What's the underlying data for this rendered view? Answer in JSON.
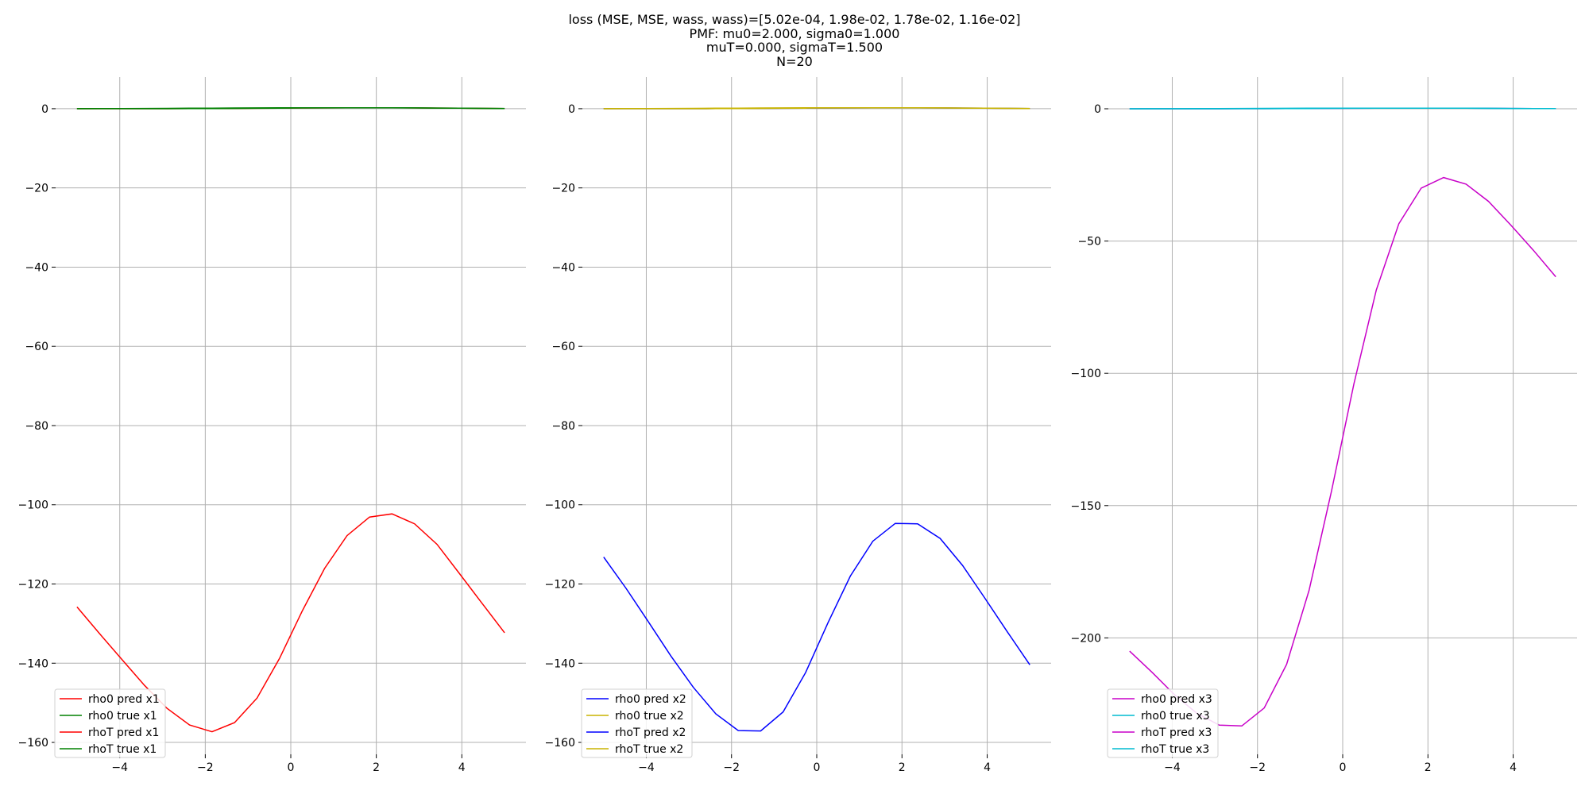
{
  "title_lines": [
    "loss (MSE, MSE, wass, wass)=[5.02e-04, 1.98e-02, 1.78e-02, 1.16e-02]",
    "PMF: mu0=2.000, sigma0=1.000",
    "muT=0.000, sigmaT=1.500",
    "N=20"
  ],
  "chart_data": [
    {
      "type": "line",
      "xlabel": "",
      "ylabel": "",
      "xlim": [
        -5.5,
        5.5
      ],
      "ylim": [
        -163,
        8
      ],
      "x_ticks": [
        -4,
        -2,
        0,
        2,
        4
      ],
      "y_ticks": [
        0,
        -20,
        -40,
        -60,
        -80,
        -100,
        -120,
        -140,
        -160
      ],
      "grid": true,
      "legend_position": "lower-left",
      "x": [
        -5.0,
        -4.474,
        -3.947,
        -3.421,
        -2.895,
        -2.368,
        -1.842,
        -1.316,
        -0.789,
        -0.263,
        0.263,
        0.789,
        1.316,
        1.842,
        2.368,
        2.895,
        3.421,
        3.947,
        4.474,
        5.0
      ],
      "series": [
        {
          "name": "rho0 pred x1",
          "color": "#ff0000",
          "values": [
            0.0,
            0.0,
            0.0,
            0.0,
            0.01,
            0.02,
            0.04,
            0.06,
            0.1,
            0.14,
            0.18,
            0.21,
            0.24,
            0.25,
            0.24,
            0.21,
            0.17,
            0.12,
            0.08,
            0.05
          ]
        },
        {
          "name": "rho0 true x1",
          "color": "#008000",
          "values": [
            0.0,
            0.0,
            0.0,
            0.0,
            0.01,
            0.02,
            0.04,
            0.06,
            0.1,
            0.14,
            0.18,
            0.21,
            0.24,
            0.25,
            0.24,
            0.21,
            0.17,
            0.12,
            0.08,
            0.05
          ]
        },
        {
          "name": "rhoT pred x1",
          "color": "#ff0000",
          "values": [
            -125.8,
            -132.5,
            -139.1,
            -145.6,
            -151.4,
            -155.6,
            -157.3,
            -155.0,
            -148.8,
            -138.8,
            -126.9,
            -116.1,
            -107.8,
            -103.1,
            -102.3,
            -104.8,
            -110.0,
            -117.4,
            -124.9,
            -132.3
          ]
        },
        {
          "name": "rhoT true x1",
          "color": "#008000",
          "values": [
            0.01,
            0.02,
            0.04,
            0.06,
            0.09,
            0.12,
            0.15,
            0.18,
            0.21,
            0.23,
            0.24,
            0.25,
            0.25,
            0.24,
            0.22,
            0.2,
            0.16,
            0.12,
            0.09,
            0.06
          ]
        }
      ]
    },
    {
      "type": "line",
      "xlabel": "",
      "ylabel": "",
      "xlim": [
        -5.5,
        5.5
      ],
      "ylim": [
        -163,
        8
      ],
      "x_ticks": [
        -4,
        -2,
        0,
        2,
        4
      ],
      "y_ticks": [
        0,
        -20,
        -40,
        -60,
        -80,
        -100,
        -120,
        -140,
        -160
      ],
      "grid": true,
      "legend_position": "lower-left",
      "x": [
        -5.0,
        -4.474,
        -3.947,
        -3.421,
        -2.895,
        -2.368,
        -1.842,
        -1.316,
        -0.789,
        -0.263,
        0.263,
        0.789,
        1.316,
        1.842,
        2.368,
        2.895,
        3.421,
        3.947,
        4.474,
        5.0
      ],
      "series": [
        {
          "name": "rho0 pred x2",
          "color": "#0000ff",
          "values": [
            0.0,
            0.0,
            0.0,
            0.0,
            0.01,
            0.02,
            0.04,
            0.06,
            0.1,
            0.14,
            0.18,
            0.21,
            0.24,
            0.25,
            0.24,
            0.21,
            0.17,
            0.12,
            0.08,
            0.05
          ]
        },
        {
          "name": "rho0 true x2",
          "color": "#c8b400",
          "values": [
            0.0,
            0.0,
            0.0,
            0.0,
            0.01,
            0.02,
            0.04,
            0.06,
            0.1,
            0.14,
            0.18,
            0.21,
            0.24,
            0.25,
            0.24,
            0.21,
            0.17,
            0.12,
            0.08,
            0.05
          ]
        },
        {
          "name": "rhoT pred x2",
          "color": "#0000ff",
          "values": [
            -113.2,
            -121.1,
            -129.6,
            -138.2,
            -146.1,
            -152.8,
            -157.0,
            -157.1,
            -152.3,
            -142.4,
            -129.8,
            -118.0,
            -109.2,
            -104.7,
            -104.8,
            -108.5,
            -115.3,
            -123.6,
            -132.1,
            -140.4
          ]
        },
        {
          "name": "rhoT true x2",
          "color": "#c8b400",
          "values": [
            0.01,
            0.02,
            0.04,
            0.06,
            0.09,
            0.12,
            0.15,
            0.18,
            0.21,
            0.23,
            0.24,
            0.25,
            0.25,
            0.24,
            0.22,
            0.2,
            0.16,
            0.12,
            0.09,
            0.06
          ]
        }
      ]
    },
    {
      "type": "line",
      "xlabel": "",
      "ylabel": "",
      "xlim": [
        -5.5,
        5.5
      ],
      "ylim": [
        -244,
        12
      ],
      "x_ticks": [
        -4,
        -2,
        0,
        2,
        4
      ],
      "y_ticks": [
        0,
        -50,
        -100,
        -150,
        -200
      ],
      "grid": true,
      "legend_position": "lower-left",
      "x": [
        -5.0,
        -4.474,
        -3.947,
        -3.421,
        -2.895,
        -2.368,
        -1.842,
        -1.316,
        -0.789,
        -0.263,
        0.263,
        0.789,
        1.316,
        1.842,
        2.368,
        2.895,
        3.421,
        3.947,
        4.474,
        5.0
      ],
      "series": [
        {
          "name": "rho0 pred x3",
          "color": "#c800c8",
          "values": [
            0.0,
            0.0,
            0.0,
            0.0,
            0.01,
            0.02,
            0.04,
            0.06,
            0.1,
            0.14,
            0.18,
            0.21,
            0.24,
            0.25,
            0.24,
            0.21,
            0.17,
            0.12,
            0.08,
            0.05
          ]
        },
        {
          "name": "rho0 true x3",
          "color": "#00bcd0",
          "values": [
            0.0,
            0.0,
            0.0,
            0.0,
            0.01,
            0.02,
            0.04,
            0.06,
            0.1,
            0.14,
            0.18,
            0.21,
            0.24,
            0.25,
            0.24,
            0.21,
            0.17,
            0.12,
            0.08,
            0.05
          ]
        },
        {
          "name": "rhoT pred x3",
          "color": "#c800c8",
          "values": [
            -205.0,
            -213.0,
            -221.5,
            -228.5,
            -233.0,
            -233.3,
            -226.5,
            -210.0,
            -182.0,
            -144.5,
            -104.0,
            -68.5,
            -43.5,
            -30.0,
            -26.0,
            -28.5,
            -35.0,
            -44.0,
            -53.5,
            -63.5
          ]
        },
        {
          "name": "rhoT true x3",
          "color": "#00bcd0",
          "values": [
            0.01,
            0.02,
            0.04,
            0.06,
            0.09,
            0.12,
            0.15,
            0.18,
            0.21,
            0.23,
            0.24,
            0.25,
            0.25,
            0.24,
            0.22,
            0.2,
            0.16,
            0.12,
            0.09,
            0.06
          ]
        }
      ]
    }
  ]
}
